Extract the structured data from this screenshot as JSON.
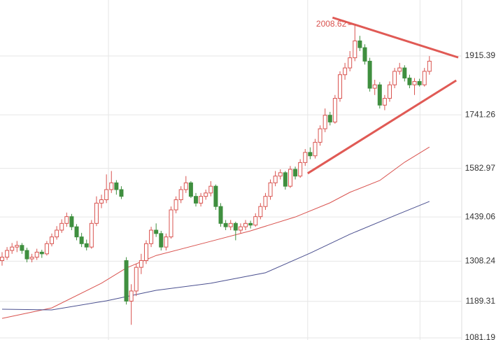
{
  "chart_data": {
    "type": "candlestick",
    "ylim": [
      1075,
      2081
    ],
    "xlim": [
      -0.42,
      92.5
    ],
    "yticks": [
      1081.19,
      1189.31,
      1308.24,
      1439.06,
      1582.97,
      1741.26,
      1915.39
    ],
    "xgrid": [
      21.4,
      61.5,
      84.1
    ],
    "grid": true,
    "up_color": "#d9534f",
    "down_color": "#3f8f3f",
    "candles": [
      [
        1310,
        1335,
        1295,
        1320
      ],
      [
        1320,
        1350,
        1312,
        1340
      ],
      [
        1340,
        1362,
        1330,
        1350
      ],
      [
        1350,
        1368,
        1335,
        1355
      ],
      [
        1355,
        1362,
        1330,
        1340
      ],
      [
        1340,
        1348,
        1305,
        1315
      ],
      [
        1315,
        1330,
        1305,
        1320
      ],
      [
        1320,
        1345,
        1312,
        1335
      ],
      [
        1335,
        1342,
        1318,
        1330
      ],
      [
        1330,
        1368,
        1325,
        1360
      ],
      [
        1360,
        1390,
        1352,
        1380
      ],
      [
        1380,
        1412,
        1372,
        1400
      ],
      [
        1400,
        1432,
        1392,
        1420
      ],
      [
        1420,
        1452,
        1410,
        1440
      ],
      [
        1440,
        1448,
        1400,
        1410
      ],
      [
        1410,
        1418,
        1370,
        1380
      ],
      [
        1380,
        1392,
        1350,
        1360
      ],
      [
        1360,
        1372,
        1340,
        1350
      ],
      [
        1350,
        1430,
        1345,
        1420
      ],
      [
        1420,
        1500,
        1412,
        1480
      ],
      [
        1480,
        1505,
        1465,
        1490
      ],
      [
        1490,
        1565,
        1480,
        1520
      ],
      [
        1520,
        1575,
        1510,
        1540
      ],
      [
        1540,
        1548,
        1505,
        1520
      ],
      [
        1520,
        1530,
        1492,
        1500
      ],
      [
        1310,
        1320,
        1180,
        1190
      ],
      [
        1190,
        1240,
        1120,
        1220
      ],
      [
        1220,
        1300,
        1205,
        1290
      ],
      [
        1290,
        1330,
        1270,
        1310
      ],
      [
        1310,
        1370,
        1300,
        1360
      ],
      [
        1360,
        1410,
        1350,
        1400
      ],
      [
        1400,
        1420,
        1380,
        1390
      ],
      [
        1390,
        1398,
        1340,
        1350
      ],
      [
        1350,
        1390,
        1340,
        1380
      ],
      [
        1380,
        1470,
        1375,
        1460
      ],
      [
        1460,
        1500,
        1450,
        1490
      ],
      [
        1490,
        1530,
        1480,
        1520
      ],
      [
        1520,
        1560,
        1510,
        1540
      ],
      [
        1540,
        1545,
        1495,
        1500
      ],
      [
        1500,
        1510,
        1470,
        1480
      ],
      [
        1480,
        1510,
        1470,
        1500
      ],
      [
        1500,
        1520,
        1490,
        1510
      ],
      [
        1510,
        1545,
        1500,
        1530
      ],
      [
        1530,
        1535,
        1460,
        1470
      ],
      [
        1470,
        1480,
        1410,
        1420
      ],
      [
        1420,
        1430,
        1400,
        1410
      ],
      [
        1410,
        1430,
        1400,
        1420
      ],
      [
        1420,
        1425,
        1370,
        1400
      ],
      [
        1400,
        1420,
        1390,
        1410
      ],
      [
        1410,
        1430,
        1400,
        1420
      ],
      [
        1420,
        1428,
        1405,
        1415
      ],
      [
        1415,
        1450,
        1410,
        1440
      ],
      [
        1440,
        1480,
        1432,
        1470
      ],
      [
        1470,
        1510,
        1460,
        1500
      ],
      [
        1500,
        1550,
        1490,
        1540
      ],
      [
        1540,
        1575,
        1530,
        1560
      ],
      [
        1560,
        1580,
        1550,
        1570
      ],
      [
        1570,
        1575,
        1520,
        1530
      ],
      [
        1530,
        1590,
        1525,
        1580
      ],
      [
        1580,
        1588,
        1550,
        1560
      ],
      [
        1560,
        1610,
        1555,
        1600
      ],
      [
        1600,
        1640,
        1590,
        1630
      ],
      [
        1630,
        1645,
        1610,
        1620
      ],
      [
        1620,
        1670,
        1612,
        1660
      ],
      [
        1660,
        1710,
        1650,
        1700
      ],
      [
        1700,
        1760,
        1690,
        1740
      ],
      [
        1740,
        1750,
        1710,
        1720
      ],
      [
        1720,
        1800,
        1715,
        1790
      ],
      [
        1790,
        1870,
        1780,
        1860
      ],
      [
        1860,
        1895,
        1845,
        1880
      ],
      [
        1880,
        1930,
        1870,
        1910
      ],
      [
        1910,
        2008.62,
        1900,
        1960
      ],
      [
        1960,
        1975,
        1930,
        1940
      ],
      [
        1940,
        1950,
        1890,
        1900
      ],
      [
        1900,
        1910,
        1810,
        1820
      ],
      [
        1820,
        1845,
        1800,
        1830
      ],
      [
        1830,
        1838,
        1760,
        1770
      ],
      [
        1770,
        1800,
        1755,
        1790
      ],
      [
        1790,
        1840,
        1780,
        1830
      ],
      [
        1830,
        1880,
        1820,
        1870
      ],
      [
        1870,
        1895,
        1860,
        1880
      ],
      [
        1880,
        1888,
        1840,
        1850
      ],
      [
        1850,
        1860,
        1820,
        1830
      ],
      [
        1830,
        1850,
        1800,
        1840
      ],
      [
        1840,
        1848,
        1825,
        1830
      ],
      [
        1830,
        1880,
        1825,
        1870
      ],
      [
        1870,
        1915,
        1860,
        1900
      ]
    ],
    "moving_averages": [
      {
        "color": "#d9534f",
        "x": [
          0,
          10,
          20,
          25,
          31,
          42,
          50,
          59,
          66,
          70,
          76,
          81,
          86
        ],
        "values": [
          1139,
          1170,
          1243,
          1288,
          1325,
          1367,
          1398,
          1439,
          1481,
          1512,
          1547,
          1601,
          1646
        ]
      },
      {
        "color": "#4a4f8f",
        "x": [
          0,
          10,
          21,
          31,
          42,
          53,
          62,
          70,
          79,
          86
        ],
        "values": [
          1166,
          1164,
          1191,
          1222,
          1243,
          1274,
          1332,
          1388,
          1443,
          1485
        ]
      }
    ],
    "trendlines": [
      {
        "color": "#e05a55",
        "x": [
          66.5,
          91.8
        ],
        "values": [
          2029,
          1911
        ]
      },
      {
        "color": "#e05a55",
        "x": [
          61.5,
          91.4
        ],
        "values": [
          1568,
          1843
        ]
      }
    ],
    "annotations": [
      {
        "text": "2008.62",
        "x": 71,
        "value": 2008.62
      }
    ]
  }
}
